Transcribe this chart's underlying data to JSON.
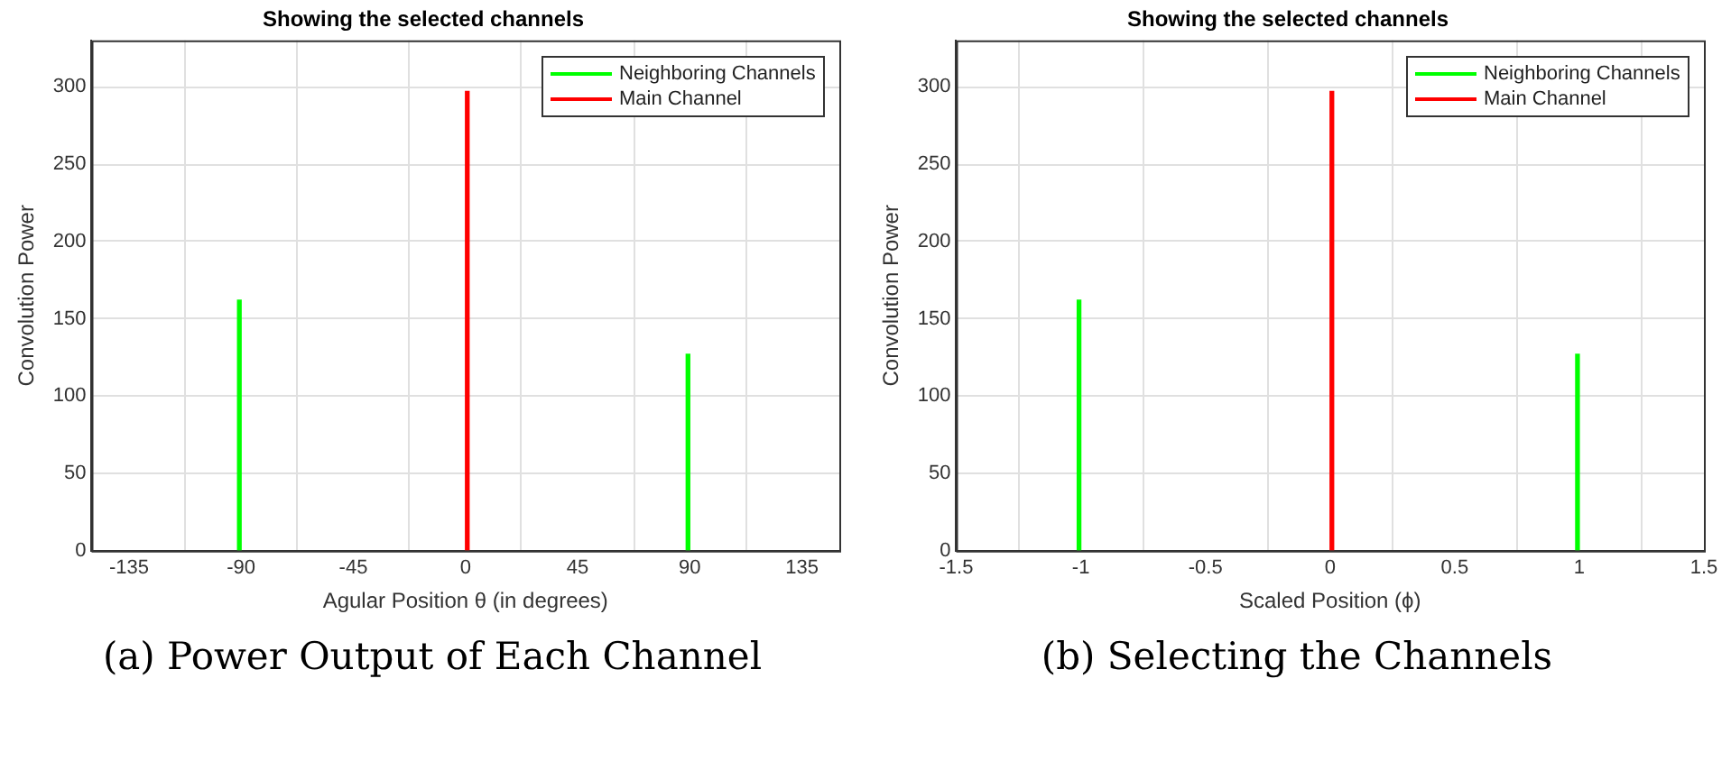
{
  "chart_data": [
    {
      "type": "bar",
      "title": "Showing the selected channels",
      "xlabel": "Agular Position θ (in degrees)",
      "ylabel": "Convolution Power",
      "series": [
        {
          "name": "Neighboring Channels",
          "color": "#00ff00",
          "x": [
            -90,
            90
          ],
          "values": [
            162,
            127
          ]
        },
        {
          "name": "Main Channel",
          "color": "#ff0000",
          "x": [
            0
          ],
          "values": [
            297
          ]
        }
      ],
      "xlim": [
        -150,
        150
      ],
      "xticks": [
        -135,
        -90,
        -45,
        0,
        45,
        90,
        135
      ],
      "ylim": [
        0,
        330
      ],
      "yticks": [
        0,
        50,
        100,
        150,
        200,
        250,
        300
      ],
      "grid": true,
      "legend": "top right",
      "annotations": [
        "(a) Power Output of Each Channel"
      ]
    },
    {
      "type": "bar",
      "title": "Showing the selected channels",
      "xlabel": "Scaled Position (ϕ)",
      "ylabel": "Convolution Power",
      "series": [
        {
          "name": "Neighboring Channels",
          "color": "#00ff00",
          "x": [
            -1,
            1
          ],
          "values": [
            162,
            127
          ]
        },
        {
          "name": "Main Channel",
          "color": "#ff0000",
          "x": [
            0
          ],
          "values": [
            297
          ]
        }
      ],
      "xlim": [
        -1.5,
        1.5
      ],
      "xticks": [
        -1.5,
        -1,
        -0.5,
        0,
        0.5,
        1,
        1.5
      ],
      "ylim": [
        0,
        330
      ],
      "yticks": [
        0,
        50,
        100,
        150,
        200,
        250,
        300
      ],
      "grid": true,
      "legend": "top right",
      "annotations": [
        "(b) Selecting the Channels"
      ]
    }
  ]
}
